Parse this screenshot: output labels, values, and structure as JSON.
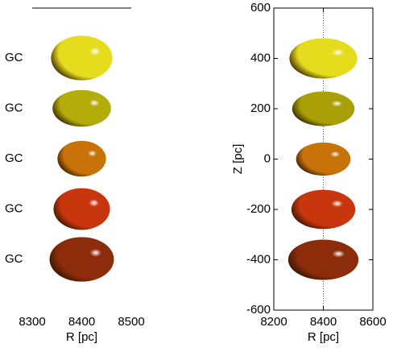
{
  "chart_data": [
    {
      "type": "ellipse",
      "categories": [
        "GC",
        "GC",
        "GC",
        "GC",
        "GC"
      ],
      "x": [
        8400,
        8400,
        8400,
        8400,
        8400
      ],
      "rx": [
        62,
        59,
        49,
        57,
        65
      ],
      "ry": [
        45,
        37,
        36,
        42,
        45
      ],
      "colors": [
        "#e6dc1e",
        "#b4ac08",
        "#c8720a",
        "#c8360e",
        "#8c2c0a"
      ],
      "xlim": [
        8300,
        8500
      ],
      "xticks": [
        8300,
        8400,
        8500
      ],
      "xlabel": "R [pc]"
    },
    {
      "type": "ellipse",
      "x": [
        8400,
        8400,
        8400,
        8400,
        8400
      ],
      "y": [
        400,
        200,
        0,
        -200,
        -400
      ],
      "rx": [
        137,
        126,
        110,
        129,
        142
      ],
      "ry": [
        80,
        69,
        66,
        78,
        80
      ],
      "colors": [
        "#e6dc1e",
        "#a8a006",
        "#c8720a",
        "#c8360e",
        "#8c2c0a"
      ],
      "xlim": [
        8200,
        8600
      ],
      "xticks": [
        8200,
        8400,
        8600
      ],
      "ylim": [
        -600,
        600
      ],
      "yticks": [
        -600,
        -400,
        -200,
        0,
        200,
        400,
        600
      ],
      "reference_line_x": 8400,
      "xlabel": "R [pc]",
      "ylabel": "Z [pc]"
    }
  ]
}
